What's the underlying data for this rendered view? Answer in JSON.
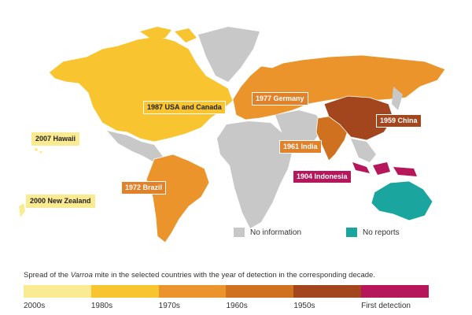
{
  "map_labels": {
    "usa_canada": "1987 USA and Canada",
    "germany": "1977 Germany",
    "china": "1959 China",
    "india": "1961 India",
    "indonesia": "1904 Indonesia",
    "brazil": "1972 Brazil",
    "hawaii": "2007 Hawaii",
    "new_zealand": "2000 New Zealand"
  },
  "legend": {
    "no_information": "No information",
    "no_reports": "No reports"
  },
  "caption": {
    "before": "Spread of the ",
    "italic": "Varroa",
    "after": " mite in the selected countries with the year of detection in the corresponding decade."
  },
  "scale": [
    {
      "label": "2000s",
      "color": "#faeb92"
    },
    {
      "label": "1980s",
      "color": "#f8c531"
    },
    {
      "label": "1970s",
      "color": "#ec942c"
    },
    {
      "label": "1960s",
      "color": "#d0711f"
    },
    {
      "label": "1950s",
      "color": "#a4461d"
    },
    {
      "label": "First detection",
      "color": "#b5175a"
    }
  ]
}
